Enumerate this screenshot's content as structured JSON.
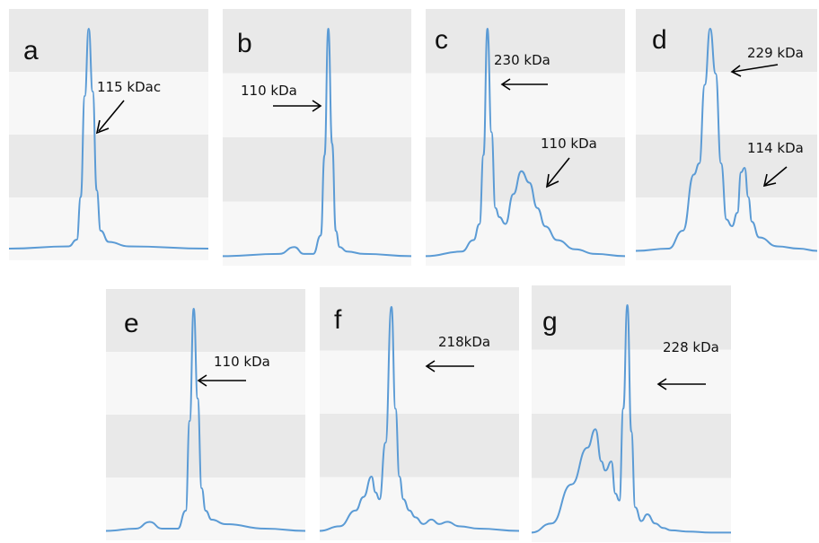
{
  "chart_data": [
    {
      "type": "line",
      "panel_label": "a",
      "annotations": [
        {
          "text": "115 kDac",
          "arrow_direction": "down-left"
        }
      ],
      "series": [
        {
          "x": [
            0,
            0.3,
            0.34,
            0.36,
            0.38,
            0.4,
            0.42,
            0.44,
            0.46,
            0.5,
            0.6,
            1.0
          ],
          "y": [
            0.02,
            0.03,
            0.06,
            0.25,
            0.7,
            1.0,
            0.72,
            0.28,
            0.1,
            0.05,
            0.03,
            0.02
          ]
        }
      ]
    },
    {
      "type": "line",
      "panel_label": "b",
      "annotations": [
        {
          "text": "110 kDa",
          "arrow_direction": "right"
        }
      ],
      "series": [
        {
          "x": [
            0,
            0.3,
            0.38,
            0.43,
            0.48,
            0.52,
            0.54,
            0.56,
            0.58,
            0.6,
            0.62,
            0.66,
            0.75,
            1.0
          ],
          "y": [
            0.01,
            0.02,
            0.05,
            0.02,
            0.02,
            0.1,
            0.45,
            1.0,
            0.5,
            0.12,
            0.05,
            0.03,
            0.02,
            0.01
          ]
        }
      ]
    },
    {
      "type": "line",
      "panel_label": "c",
      "annotations": [
        {
          "text": "230 kDa",
          "arrow_direction": "left"
        },
        {
          "text": "110 kDa",
          "arrow_direction": "down-left"
        }
      ],
      "series": [
        {
          "x": [
            0,
            0.18,
            0.24,
            0.27,
            0.29,
            0.31,
            0.33,
            0.35,
            0.37,
            0.4,
            0.44,
            0.48,
            0.52,
            0.56,
            0.6,
            0.66,
            0.75,
            0.85,
            1.0
          ],
          "y": [
            0.01,
            0.03,
            0.08,
            0.15,
            0.45,
            1.0,
            0.55,
            0.22,
            0.18,
            0.15,
            0.28,
            0.38,
            0.33,
            0.22,
            0.14,
            0.08,
            0.04,
            0.02,
            0.01
          ]
        }
      ]
    },
    {
      "type": "line",
      "panel_label": "d",
      "annotations": [
        {
          "text": "229 kDa",
          "arrow_direction": "left"
        },
        {
          "text": "114 kDa",
          "arrow_direction": "down-left"
        }
      ],
      "series": [
        {
          "x": [
            0,
            0.18,
            0.26,
            0.32,
            0.35,
            0.38,
            0.41,
            0.44,
            0.47,
            0.5,
            0.53,
            0.56,
            0.58,
            0.6,
            0.62,
            0.64,
            0.68,
            0.78,
            0.9,
            1.0
          ],
          "y": [
            0.01,
            0.02,
            0.1,
            0.35,
            0.4,
            0.75,
            1.0,
            0.8,
            0.4,
            0.15,
            0.12,
            0.18,
            0.36,
            0.38,
            0.25,
            0.14,
            0.07,
            0.03,
            0.02,
            0.01
          ]
        }
      ]
    },
    {
      "type": "line",
      "panel_label": "e",
      "annotations": [
        {
          "text": "110 kDa",
          "arrow_direction": "left"
        }
      ],
      "series": [
        {
          "x": [
            0,
            0.15,
            0.22,
            0.28,
            0.36,
            0.4,
            0.42,
            0.44,
            0.46,
            0.48,
            0.5,
            0.53,
            0.6,
            0.8,
            1.0
          ],
          "y": [
            0.01,
            0.02,
            0.05,
            0.02,
            0.02,
            0.1,
            0.5,
            1.0,
            0.6,
            0.2,
            0.1,
            0.06,
            0.04,
            0.02,
            0.01
          ]
        }
      ]
    },
    {
      "type": "line",
      "panel_label": "f",
      "annotations": [
        {
          "text": "218kDa",
          "arrow_direction": "left"
        }
      ],
      "series": [
        {
          "x": [
            0,
            0.1,
            0.18,
            0.22,
            0.26,
            0.28,
            0.3,
            0.33,
            0.36,
            0.38,
            0.4,
            0.42,
            0.45,
            0.48,
            0.52,
            0.56,
            0.6,
            0.64,
            0.7,
            0.8,
            1.0
          ],
          "y": [
            0.01,
            0.03,
            0.1,
            0.16,
            0.25,
            0.18,
            0.15,
            0.4,
            1.0,
            0.55,
            0.25,
            0.15,
            0.1,
            0.07,
            0.04,
            0.06,
            0.04,
            0.05,
            0.03,
            0.02,
            0.01
          ]
        }
      ]
    },
    {
      "type": "line",
      "panel_label": "g",
      "annotations": [
        {
          "text": "228 kDa",
          "arrow_direction": "left"
        }
      ],
      "series": [
        {
          "x": [
            0,
            0.1,
            0.2,
            0.28,
            0.32,
            0.35,
            0.37,
            0.4,
            0.42,
            0.44,
            0.46,
            0.48,
            0.5,
            0.52,
            0.55,
            0.58,
            0.62,
            0.66,
            0.7,
            0.78,
            0.9,
            1.0
          ],
          "y": [
            0.01,
            0.05,
            0.22,
            0.38,
            0.46,
            0.32,
            0.28,
            0.32,
            0.18,
            0.15,
            0.55,
            1.0,
            0.45,
            0.12,
            0.06,
            0.09,
            0.05,
            0.03,
            0.02,
            0.015,
            0.01,
            0.01
          ]
        }
      ]
    }
  ],
  "colors": {
    "trace": "#5b9bd5",
    "arrow": "#000000",
    "band_dark": "#e9e9e9",
    "band_light": "#f7f7f7"
  }
}
